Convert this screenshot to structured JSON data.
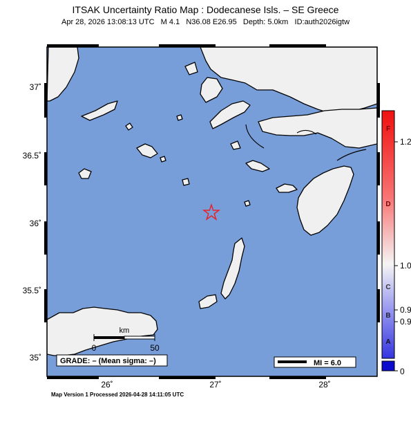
{
  "header": {
    "title": "ITSAK Uncertainty Ratio Map : Dodecanese Isls. – SE Greece",
    "subtitle": "Apr 28, 2026 13:08:13 UTC   M 4.1   N36.08 E26.95   Depth: 5.0km   ID:auth2026igtw"
  },
  "event": {
    "lat": 36.08,
    "lon": 26.95,
    "marker": "star-icon",
    "color": "#e8202a"
  },
  "map": {
    "lon_range": [
      25.5,
      28.45
    ],
    "lat_range": [
      34.85,
      37.3
    ],
    "sea_color": "#779ed9",
    "land_color": "#f0f0f0",
    "lat_ticks": [
      "37˚",
      "36.5˚",
      "36˚",
      "35.5˚",
      "35˚"
    ],
    "lon_ticks": [
      "26˚",
      "27˚",
      "28˚"
    ]
  },
  "scale_bar": {
    "unit": "km",
    "start": "0",
    "end": "50"
  },
  "grade_box": "GRADE: – (Mean sigma: –)",
  "mi_legend": "MI = 6.0",
  "color_scale": {
    "letters": [
      "F",
      "D",
      "C",
      "B",
      "A"
    ],
    "values": [
      "1.2",
      "1.0",
      "0.9",
      "0.9",
      "0"
    ]
  },
  "footer": "Map Version 1 Processed 2026-04-28 14:11:05 UTC"
}
